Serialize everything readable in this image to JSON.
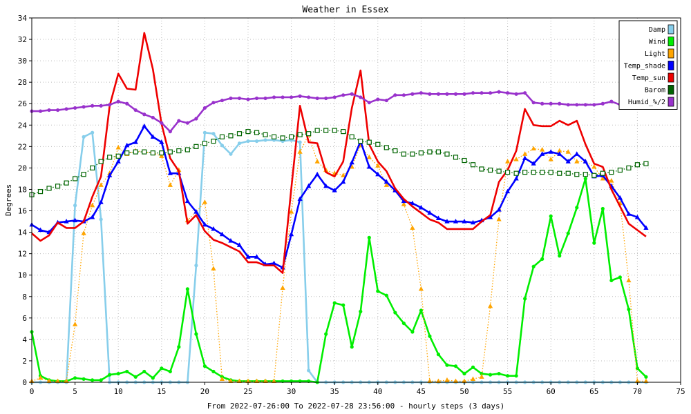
{
  "chart_data": {
    "type": "line",
    "title": "Weather in Essex",
    "xlabel": "From 2022-07-26:00 To 2022-07-28 23:56:00 - hourly steps (3 days)",
    "ylabel": "Degrees",
    "xlim": [
      0,
      75
    ],
    "ylim": [
      0,
      34
    ],
    "xticks": [
      0,
      5,
      10,
      15,
      20,
      25,
      30,
      35,
      40,
      45,
      50,
      55,
      60,
      65,
      70,
      75
    ],
    "yticks": [
      0,
      2,
      4,
      6,
      8,
      10,
      12,
      14,
      16,
      18,
      20,
      22,
      24,
      26,
      28,
      30,
      32,
      34
    ],
    "grid": true,
    "legend_position": "top-right",
    "series": [
      {
        "name": "Damp",
        "color": "#87ceeb",
        "marker": "circle",
        "line": "solid",
        "values": [
          0,
          0,
          0,
          0,
          0,
          16.5,
          22.9,
          23.3,
          15.2,
          0,
          0,
          0,
          0,
          0,
          0,
          0,
          0,
          0,
          0,
          10.9,
          23.3,
          23.2,
          22.1,
          21.3,
          22.3,
          22.5,
          22.5,
          22.6,
          22.6,
          22.5,
          22.6,
          22.4,
          1.1,
          0,
          0,
          0,
          0,
          0,
          0,
          0,
          0,
          0,
          0,
          0,
          0,
          0,
          0,
          0,
          0,
          0,
          0,
          0,
          0,
          0,
          0,
          0,
          0,
          0,
          0,
          0,
          0,
          0,
          0,
          0,
          0,
          0,
          0,
          0,
          0,
          0,
          0,
          0
        ]
      },
      {
        "name": "Wind",
        "color": "#00ee00",
        "marker": "circle",
        "line": "solid",
        "values": [
          4.7,
          0.6,
          0.2,
          0.1,
          0.1,
          0.4,
          0.3,
          0.2,
          0.2,
          0.7,
          0.8,
          1,
          0.5,
          1,
          0.4,
          1.3,
          1,
          3.3,
          8.7,
          4.5,
          1.5,
          1,
          0.5,
          0.2,
          0.1,
          0.1,
          0.1,
          0.1,
          0.1,
          0.1,
          0.1,
          0.1,
          0.1,
          0,
          4.5,
          7.4,
          7.2,
          3.3,
          6.6,
          13.5,
          8.5,
          8.1,
          6.5,
          5.5,
          4.7,
          6.7,
          4.3,
          2.6,
          1.6,
          1.5,
          0.8,
          1.4,
          0.8,
          0.7,
          0.8,
          0.6,
          0.6,
          7.8,
          10.8,
          11.5,
          15.5,
          11.8,
          13.9,
          16.3,
          19,
          13,
          16.2,
          9.5,
          9.8,
          6.8,
          1.3,
          0.5
        ]
      },
      {
        "name": "Light",
        "color": "#ffa500",
        "marker": "triangle",
        "line": "dotted",
        "values": [
          0.1,
          0.4,
          0.1,
          0.1,
          0.1,
          5.4,
          13.9,
          16.5,
          18.4,
          19.5,
          21.9,
          21.3,
          21.6,
          21.5,
          21.4,
          21.1,
          18.4,
          19.8,
          15.1,
          15.9,
          16.8,
          10.6,
          0.3,
          0.1,
          0.1,
          0.1,
          0.1,
          0.1,
          0.1,
          8.8,
          15.9,
          21.5,
          23.1,
          20.6,
          19.8,
          19.5,
          19.3,
          20.1,
          22.1,
          21,
          20.2,
          18.4,
          18,
          16.6,
          14.4,
          8.7,
          0.1,
          0.1,
          0.2,
          0.1,
          0.1,
          0.3,
          0.5,
          7.1,
          15.2,
          20.6,
          20.8,
          21.3,
          21.8,
          21.7,
          20.8,
          21.6,
          21.5,
          20.6,
          20.6,
          20.1,
          19,
          18.8,
          16.7,
          9.5,
          0.1,
          0.1
        ]
      },
      {
        "name": "Temp_shade",
        "color": "#0000ff",
        "marker": "triangle",
        "line": "solid",
        "values": [
          14.7,
          14.2,
          14,
          14.9,
          15,
          15.1,
          15,
          15.4,
          16.8,
          19.3,
          20.6,
          22.1,
          22.4,
          23.9,
          22.9,
          22.4,
          19.5,
          19.5,
          16.9,
          15.9,
          14.7,
          14.3,
          13.8,
          13.2,
          12.8,
          11.7,
          11.7,
          11,
          11.1,
          10.7,
          13.8,
          17.1,
          18.3,
          19.4,
          18.3,
          17.9,
          18.7,
          20.5,
          22.5,
          20.1,
          19.4,
          18.7,
          17.9,
          16.9,
          16.7,
          16.3,
          15.8,
          15.3,
          15,
          15,
          15,
          14.9,
          15.1,
          15.4,
          16.1,
          17.8,
          19,
          20.9,
          20.4,
          21.3,
          21.5,
          21.3,
          20.6,
          21.3,
          20.6,
          19.2,
          19.3,
          18.3,
          17.2,
          15.7,
          15.4,
          14.4
        ]
      },
      {
        "name": "Temp_sun",
        "color": "#ee0000",
        "marker": "none",
        "line": "solid",
        "values": [
          13.9,
          13.2,
          13.7,
          14.9,
          14.4,
          14.4,
          15,
          17.3,
          19.2,
          25.8,
          28.8,
          27.4,
          27.3,
          32.6,
          29.2,
          24.1,
          20.9,
          19.7,
          14.8,
          15.6,
          14.1,
          13.3,
          13,
          12.6,
          12.2,
          11.2,
          11.2,
          10.9,
          10.9,
          10.2,
          18.1,
          25.8,
          22.4,
          22.3,
          19.6,
          19.2,
          20.6,
          25.6,
          29.1,
          22.2,
          20.6,
          19.7,
          18.1,
          17.1,
          16.4,
          15.8,
          15.2,
          14.9,
          14.3,
          14.3,
          14.3,
          14.3,
          15,
          15.6,
          18.7,
          19.8,
          21.6,
          25.5,
          24,
          23.9,
          23.9,
          24.4,
          24,
          24.4,
          22.2,
          20.4,
          20.1,
          18,
          16.4,
          14.8,
          14.2,
          13.6
        ]
      },
      {
        "name": "Barom",
        "color": "#006400",
        "marker": "square",
        "line": "dotted",
        "values": [
          17.5,
          17.8,
          18.1,
          18.3,
          18.6,
          19,
          19.4,
          20,
          20.6,
          21,
          21.1,
          21.4,
          21.5,
          21.5,
          21.4,
          21.4,
          21.5,
          21.6,
          21.7,
          22,
          22.3,
          22.5,
          22.9,
          23,
          23.2,
          23.4,
          23.3,
          23.1,
          22.9,
          22.8,
          22.9,
          23.1,
          23.2,
          23.5,
          23.5,
          23.5,
          23.4,
          22.9,
          22.5,
          22.4,
          22.2,
          21.9,
          21.6,
          21.3,
          21.3,
          21.4,
          21.5,
          21.5,
          21.3,
          21,
          20.7,
          20.3,
          19.9,
          19.8,
          19.7,
          19.6,
          19.5,
          19.6,
          19.6,
          19.6,
          19.6,
          19.5,
          19.5,
          19.4,
          19.4,
          19.3,
          19.5,
          19.6,
          19.8,
          20,
          20.3,
          20.4
        ]
      },
      {
        "name": "Humid_%/2",
        "color": "#9932cc",
        "marker": "circle",
        "line": "solid",
        "values": [
          25.3,
          25.3,
          25.4,
          25.4,
          25.5,
          25.6,
          25.7,
          25.8,
          25.8,
          25.9,
          26.2,
          26,
          25.4,
          25,
          24.7,
          24.2,
          23.4,
          24.4,
          24.2,
          24.6,
          25.6,
          26.1,
          26.3,
          26.5,
          26.5,
          26.4,
          26.5,
          26.5,
          26.6,
          26.6,
          26.6,
          26.7,
          26.6,
          26.5,
          26.5,
          26.6,
          26.8,
          26.9,
          26.6,
          26.1,
          26.4,
          26.3,
          26.8,
          26.8,
          26.9,
          27,
          26.9,
          26.9,
          26.9,
          26.9,
          26.9,
          27,
          27,
          27,
          27.1,
          27,
          26.9,
          27,
          26.1,
          26,
          26,
          26,
          25.9,
          25.9,
          25.9,
          25.9,
          26,
          26.2,
          25.9,
          25.8,
          25.7,
          25.7
        ]
      }
    ]
  }
}
